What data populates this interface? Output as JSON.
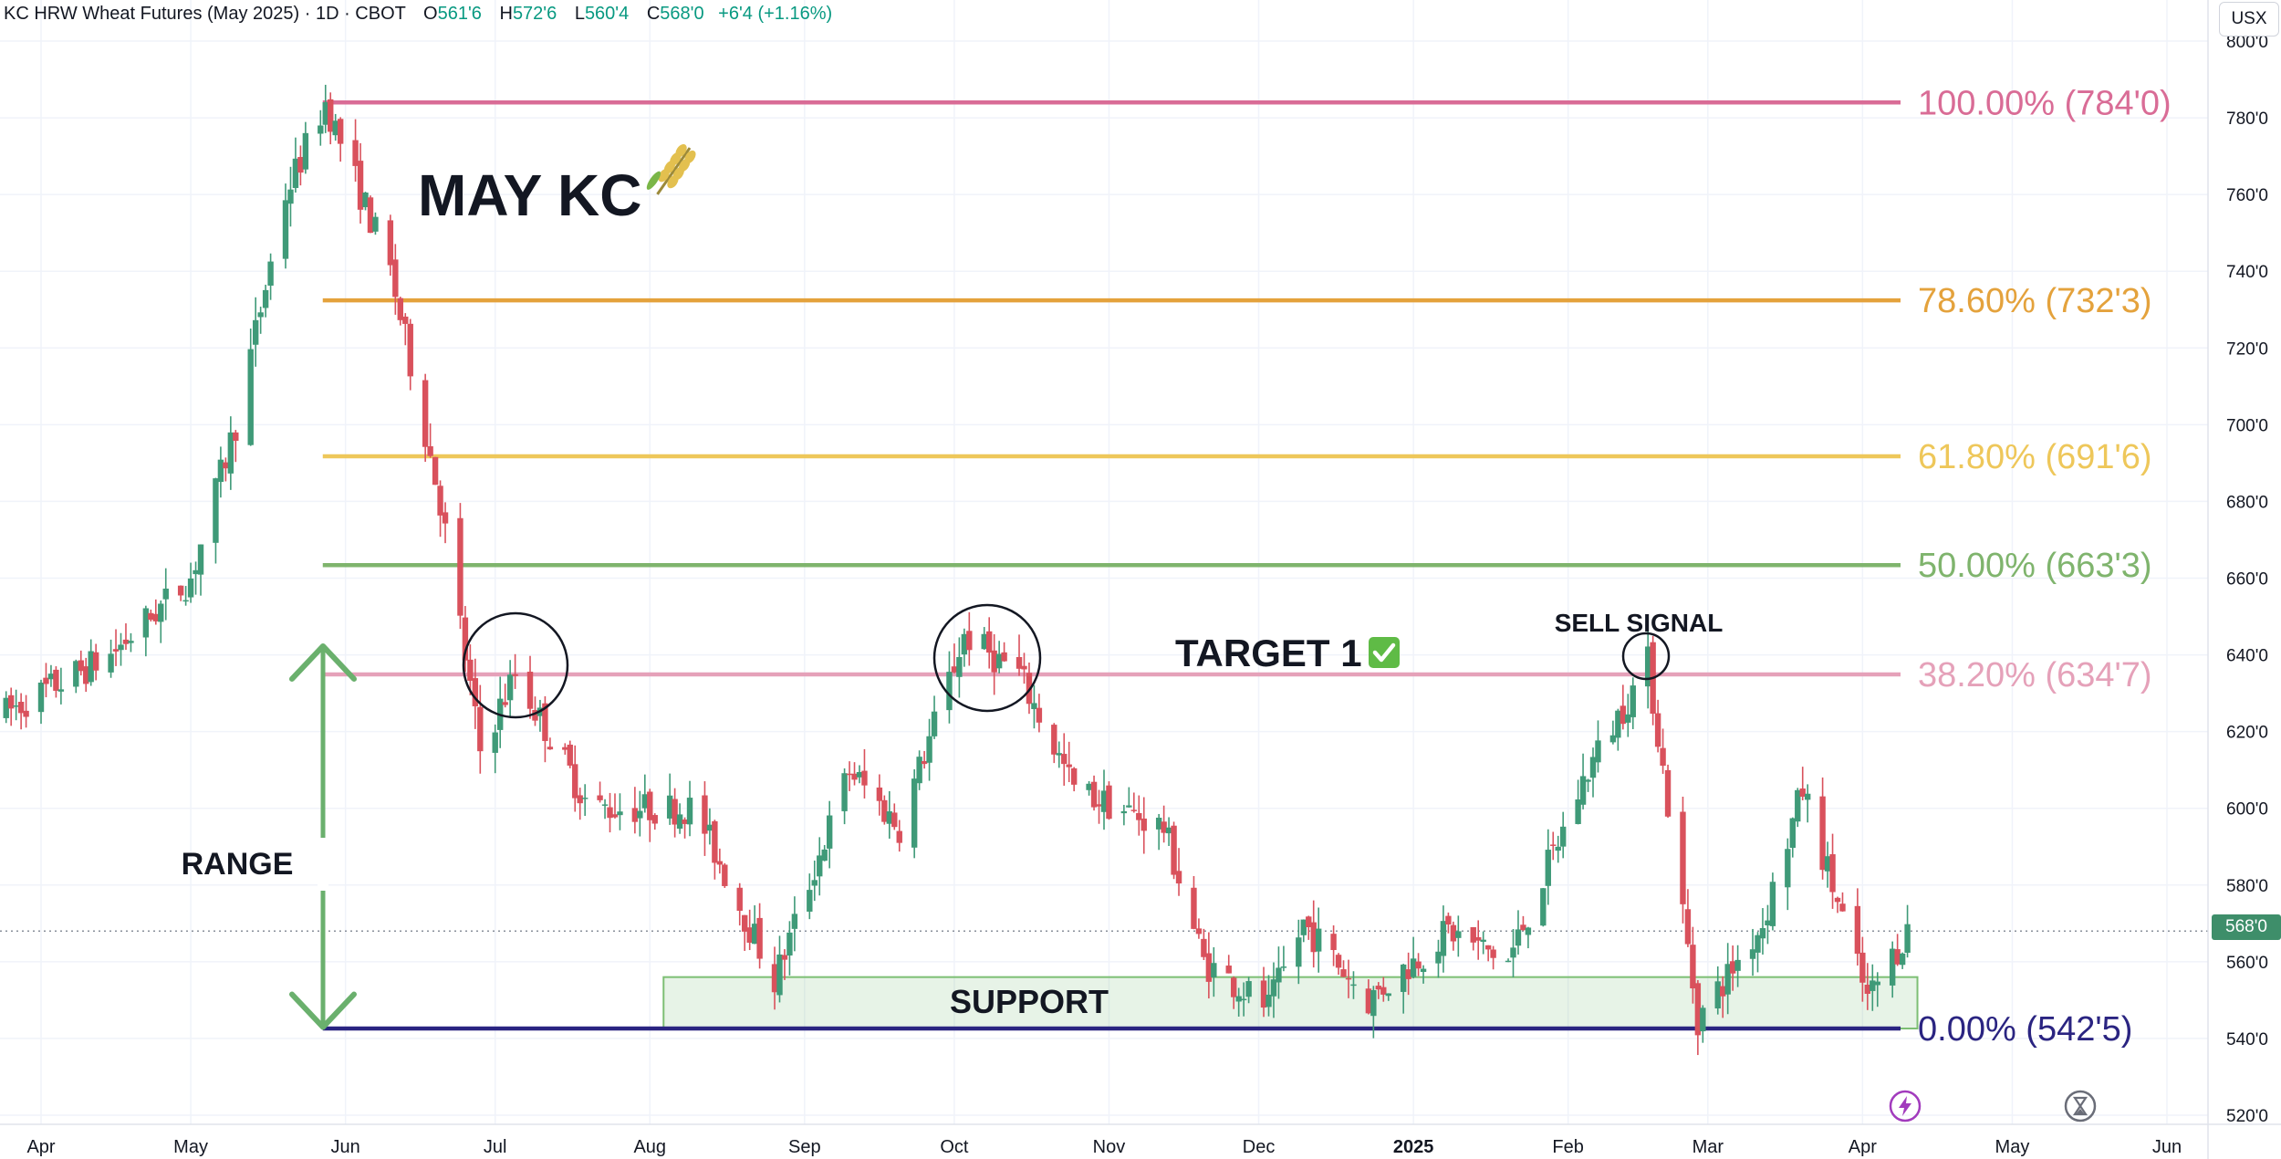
{
  "header": {
    "title": "KC HRW Wheat Futures (May 2025) · 1D · CBOT",
    "open_label": "O",
    "open": "561'6",
    "high_label": "H",
    "high": "572'6",
    "low_label": "L",
    "low": "560'4",
    "close_label": "C",
    "close": "568'0",
    "change": "+6'4 (+1.16%)"
  },
  "currency_button": "USX",
  "last_price_label": "568'0",
  "toolbar": {
    "alert_icon": "lightning-icon",
    "replay_icon": "hourglass-icon"
  },
  "chart_data": {
    "type": "candlestick",
    "xlabel": "",
    "ylabel": "",
    "ylim": [
      516,
      805
    ],
    "y_ticks": [
      "520'0",
      "540'0",
      "560'0",
      "580'0",
      "600'0",
      "620'0",
      "640'0",
      "660'0",
      "680'0",
      "700'0",
      "720'0",
      "740'0",
      "760'0",
      "780'0",
      "800'0"
    ],
    "x_ticks": [
      "Apr",
      "May",
      "Jun",
      "Jul",
      "Aug",
      "Sep",
      "Oct",
      "Nov",
      "Dec",
      "2025",
      "Feb",
      "Mar",
      "Apr",
      "May",
      "Jun"
    ],
    "grid": true,
    "colors": {
      "up": "#3f9a78",
      "down": "#d9515c"
    },
    "last_price": 568,
    "key_points": [
      {
        "date": "2024-03-25",
        "price": 625
      },
      {
        "date": "2024-04-15",
        "price": 640
      },
      {
        "date": "2024-05-01",
        "price": 660
      },
      {
        "date": "2024-05-10",
        "price": 700
      },
      {
        "date": "2024-05-20",
        "price": 760
      },
      {
        "date": "2024-05-28",
        "price": 784
      },
      {
        "date": "2024-06-10",
        "price": 740
      },
      {
        "date": "2024-06-20",
        "price": 680
      },
      {
        "date": "2024-06-28",
        "price": 615
      },
      {
        "date": "2024-07-05",
        "price": 635
      },
      {
        "date": "2024-07-20",
        "price": 600
      },
      {
        "date": "2024-08-10",
        "price": 600
      },
      {
        "date": "2024-08-26",
        "price": 555
      },
      {
        "date": "2024-09-10",
        "price": 610
      },
      {
        "date": "2024-09-20",
        "price": 595
      },
      {
        "date": "2024-10-03",
        "price": 645
      },
      {
        "date": "2024-10-14",
        "price": 635
      },
      {
        "date": "2024-10-25",
        "price": 605
      },
      {
        "date": "2024-11-12",
        "price": 595
      },
      {
        "date": "2024-11-20",
        "price": 560
      },
      {
        "date": "2024-12-03",
        "price": 548
      },
      {
        "date": "2024-12-10",
        "price": 570
      },
      {
        "date": "2024-12-23",
        "price": 550
      },
      {
        "date": "2025-01-08",
        "price": 568
      },
      {
        "date": "2025-01-20",
        "price": 560
      },
      {
        "date": "2025-02-05",
        "price": 610
      },
      {
        "date": "2025-02-17",
        "price": 638
      },
      {
        "date": "2025-02-27",
        "price": 545
      },
      {
        "date": "2025-03-12",
        "price": 570
      },
      {
        "date": "2025-03-20",
        "price": 605
      },
      {
        "date": "2025-04-02",
        "price": 550
      },
      {
        "date": "2025-04-10",
        "price": 568
      }
    ],
    "fib_levels": [
      {
        "label": "100.00% (784'0)",
        "value": 784,
        "color": "#d96c96"
      },
      {
        "label": "78.60% (732'3)",
        "value": 732.4,
        "color": "#e4a23c"
      },
      {
        "label": "61.80% (691'6)",
        "value": 691.75,
        "color": "#eec75a"
      },
      {
        "label": "50.00% (663'3)",
        "value": 663.4,
        "color": "#7fb46d"
      },
      {
        "label": "38.20% (634'7)",
        "value": 634.9,
        "color": "#e5a1b9"
      },
      {
        "label": "0.00% (542'5)",
        "value": 542.6,
        "color": "#2a2481"
      }
    ],
    "annotations": {
      "title": "MAY KC",
      "range": "RANGE",
      "support": "SUPPORT",
      "target": "TARGET 1",
      "sell_signal": "SELL SIGNAL",
      "wheat_icon": "wheat-icon",
      "check_icon": "checkmark-icon"
    },
    "support_zone": [
      542.6,
      556
    ]
  }
}
